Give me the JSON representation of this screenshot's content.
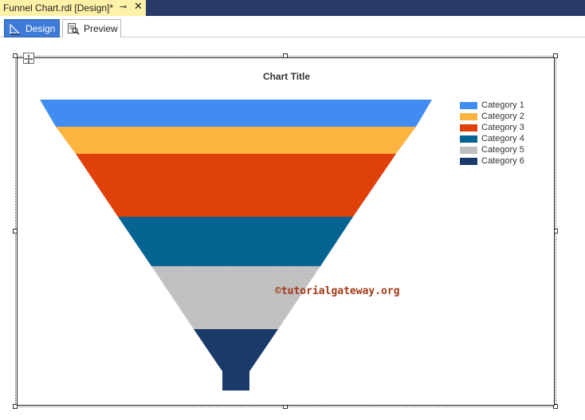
{
  "document_tab": {
    "title": "Funnel Chart.rdl [Design]*",
    "pin_icon": "pin-icon",
    "close_icon": "close-icon"
  },
  "view_tabs": [
    {
      "label": "Design",
      "icon": "design-ruler-icon",
      "active": true
    },
    {
      "label": "Preview",
      "icon": "preview-icon",
      "active": false
    }
  ],
  "chart": {
    "title": "Chart Title",
    "watermark": "©tutorialgateway.org",
    "colors": {
      "Category 1": "#418cf0",
      "Category 2": "#fcb441",
      "Category 3": "#e0400a",
      "Category 4": "#056492",
      "Category 5": "#bfbfbf",
      "Category 6": "#1a3b69"
    }
  },
  "chart_data": {
    "type": "funnel",
    "title": "Chart Title",
    "categories": [
      "Category 1",
      "Category 2",
      "Category 3",
      "Category 4",
      "Category 5",
      "Category 6"
    ],
    "legend": "top-right"
  }
}
